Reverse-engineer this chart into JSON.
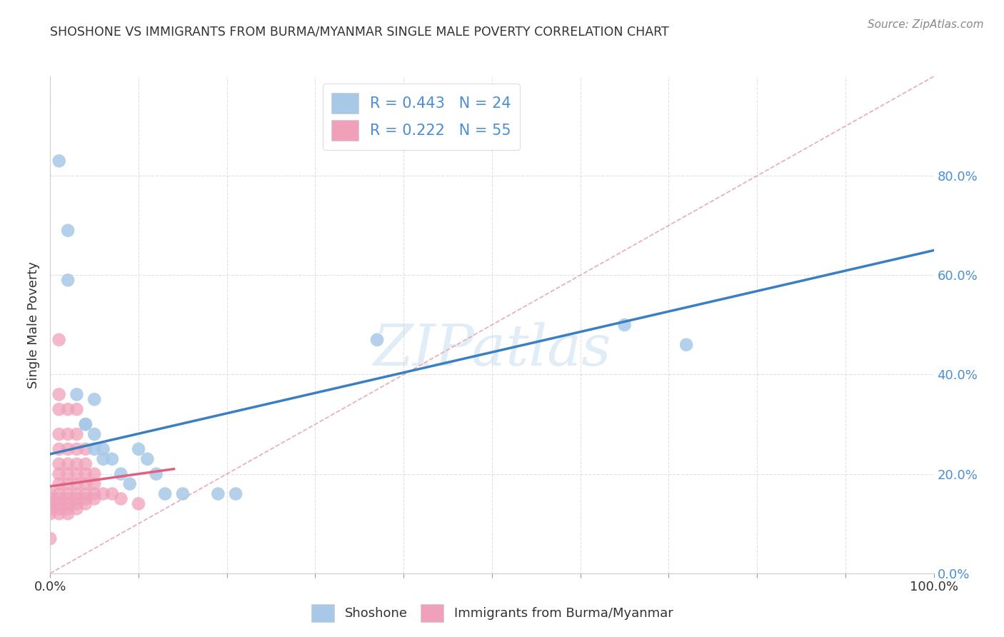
{
  "title": "SHOSHONE VS IMMIGRANTS FROM BURMA/MYANMAR SINGLE MALE POVERTY CORRELATION CHART",
  "source": "Source: ZipAtlas.com",
  "ylabel": "Single Male Poverty",
  "background_color": "#ffffff",
  "watermark_text": "ZIPatlas",
  "xlim": [
    0.0,
    1.0
  ],
  "ylim": [
    0.0,
    1.0
  ],
  "x_ticks": [
    0.0,
    0.1,
    0.2,
    0.3,
    0.4,
    0.5,
    0.6,
    0.7,
    0.8,
    0.9,
    1.0
  ],
  "x_tick_labels_show": {
    "0.0": "0.0%",
    "1.0": "100.0%"
  },
  "y_ticks": [
    0.0,
    0.2,
    0.4,
    0.6,
    0.8
  ],
  "y_tick_labels": [
    "0.0%",
    "20.0%",
    "40.0%",
    "60.0%",
    "80.0%"
  ],
  "blue_color": "#a8c8e8",
  "pink_color": "#f0a0b8",
  "blue_line_color": "#3a7fc1",
  "pink_line_color": "#e06080",
  "diagonal_color": "#e8a0b0",
  "legend_blue_label": "R = 0.443   N = 24",
  "legend_pink_label": "R = 0.222   N = 55",
  "shoshone_points": [
    [
      0.01,
      0.83
    ],
    [
      0.02,
      0.69
    ],
    [
      0.02,
      0.59
    ],
    [
      0.03,
      0.36
    ],
    [
      0.04,
      0.3
    ],
    [
      0.04,
      0.3
    ],
    [
      0.05,
      0.35
    ],
    [
      0.05,
      0.28
    ],
    [
      0.05,
      0.25
    ],
    [
      0.06,
      0.23
    ],
    [
      0.06,
      0.25
    ],
    [
      0.07,
      0.23
    ],
    [
      0.08,
      0.2
    ],
    [
      0.09,
      0.18
    ],
    [
      0.1,
      0.25
    ],
    [
      0.11,
      0.23
    ],
    [
      0.12,
      0.2
    ],
    [
      0.13,
      0.16
    ],
    [
      0.15,
      0.16
    ],
    [
      0.19,
      0.16
    ],
    [
      0.21,
      0.16
    ],
    [
      0.37,
      0.47
    ],
    [
      0.65,
      0.5
    ],
    [
      0.72,
      0.46
    ]
  ],
  "burma_points": [
    [
      0.0,
      0.07
    ],
    [
      0.0,
      0.12
    ],
    [
      0.0,
      0.13
    ],
    [
      0.0,
      0.14
    ],
    [
      0.0,
      0.15
    ],
    [
      0.0,
      0.16
    ],
    [
      0.01,
      0.12
    ],
    [
      0.01,
      0.13
    ],
    [
      0.01,
      0.14
    ],
    [
      0.01,
      0.15
    ],
    [
      0.01,
      0.16
    ],
    [
      0.01,
      0.18
    ],
    [
      0.01,
      0.2
    ],
    [
      0.01,
      0.22
    ],
    [
      0.01,
      0.25
    ],
    [
      0.01,
      0.28
    ],
    [
      0.01,
      0.33
    ],
    [
      0.01,
      0.36
    ],
    [
      0.01,
      0.47
    ],
    [
      0.02,
      0.12
    ],
    [
      0.02,
      0.13
    ],
    [
      0.02,
      0.14
    ],
    [
      0.02,
      0.15
    ],
    [
      0.02,
      0.16
    ],
    [
      0.02,
      0.18
    ],
    [
      0.02,
      0.2
    ],
    [
      0.02,
      0.22
    ],
    [
      0.02,
      0.25
    ],
    [
      0.02,
      0.28
    ],
    [
      0.02,
      0.33
    ],
    [
      0.03,
      0.13
    ],
    [
      0.03,
      0.14
    ],
    [
      0.03,
      0.15
    ],
    [
      0.03,
      0.16
    ],
    [
      0.03,
      0.18
    ],
    [
      0.03,
      0.2
    ],
    [
      0.03,
      0.22
    ],
    [
      0.03,
      0.25
    ],
    [
      0.03,
      0.28
    ],
    [
      0.03,
      0.33
    ],
    [
      0.04,
      0.14
    ],
    [
      0.04,
      0.15
    ],
    [
      0.04,
      0.16
    ],
    [
      0.04,
      0.18
    ],
    [
      0.04,
      0.2
    ],
    [
      0.04,
      0.22
    ],
    [
      0.04,
      0.25
    ],
    [
      0.05,
      0.15
    ],
    [
      0.05,
      0.16
    ],
    [
      0.05,
      0.18
    ],
    [
      0.05,
      0.2
    ],
    [
      0.06,
      0.16
    ],
    [
      0.07,
      0.16
    ],
    [
      0.08,
      0.15
    ],
    [
      0.1,
      0.14
    ]
  ],
  "blue_trend_x": [
    0.0,
    1.0
  ],
  "blue_trend_y": [
    0.24,
    0.65
  ],
  "pink_trend_x": [
    0.0,
    0.14
  ],
  "pink_trend_y": [
    0.175,
    0.21
  ]
}
